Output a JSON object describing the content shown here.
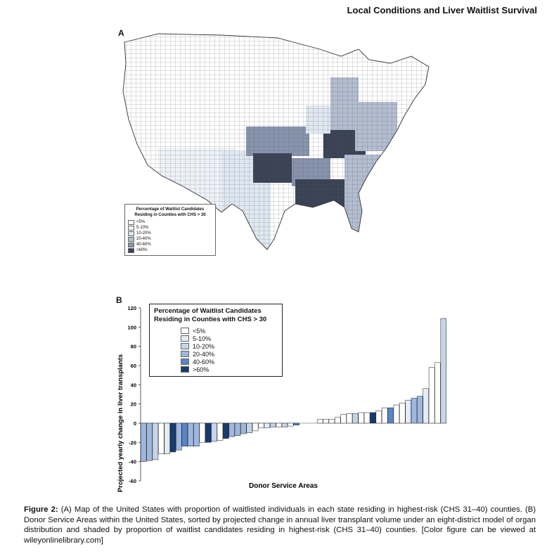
{
  "header": {
    "running_title": "Local Conditions and Liver Waitlist Survival"
  },
  "panel_a": {
    "label": "A",
    "legend": {
      "title": "Percentage of Waitlist Candidates Residing in Counties with CHS > 30",
      "items": [
        {
          "label": "<5%",
          "color": "#ffffff"
        },
        {
          "label": "5-10%",
          "color": "#eef2f8"
        },
        {
          "label": "10-20%",
          "color": "#dfe7f1"
        },
        {
          "label": "20-40%",
          "color": "#b3bdd0"
        },
        {
          "label": "40-60%",
          "color": "#8894ad"
        },
        {
          "label": ">60%",
          "color": "#3a4255"
        }
      ]
    }
  },
  "panel_b": {
    "label": "B"
  },
  "chart_data": {
    "type": "bar",
    "xlabel": "Donor Service Areas",
    "ylabel": "Projected yearly change in liver transplants",
    "ylim": [
      -60,
      120
    ],
    "yticks": [
      -60,
      -40,
      -20,
      0,
      20,
      40,
      60,
      80,
      100,
      120
    ],
    "grid": false,
    "legend_position": "top-left",
    "legend": {
      "title": "Percentage of Waitlist Candidates Residing in Counties with CHS > 30",
      "items": [
        {
          "label": "<5%",
          "color": "#ffffff"
        },
        {
          "label": "5-10%",
          "color": "#e3ebf5"
        },
        {
          "label": "10-20%",
          "color": "#c5d5ea"
        },
        {
          "label": "20-40%",
          "color": "#9db7dd"
        },
        {
          "label": "40-60%",
          "color": "#5b86c4"
        },
        {
          "label": ">60%",
          "color": "#173b6c"
        }
      ]
    },
    "bars": [
      {
        "v": -40,
        "c": 3
      },
      {
        "v": -39,
        "c": 3
      },
      {
        "v": -38,
        "c": 2
      },
      {
        "v": -32,
        "c": 0
      },
      {
        "v": -32,
        "c": 1
      },
      {
        "v": -30,
        "c": 5
      },
      {
        "v": -28,
        "c": 3
      },
      {
        "v": -24,
        "c": 4
      },
      {
        "v": -24,
        "c": 3
      },
      {
        "v": -24,
        "c": 3
      },
      {
        "v": -20,
        "c": 0
      },
      {
        "v": -20,
        "c": 5
      },
      {
        "v": -19,
        "c": 2
      },
      {
        "v": -18,
        "c": 0
      },
      {
        "v": -16,
        "c": 5
      },
      {
        "v": -14,
        "c": 3
      },
      {
        "v": -13,
        "c": 3
      },
      {
        "v": -11,
        "c": 3
      },
      {
        "v": -10,
        "c": 2
      },
      {
        "v": -8,
        "c": 0
      },
      {
        "v": -5,
        "c": 0
      },
      {
        "v": -5,
        "c": 1
      },
      {
        "v": -4,
        "c": 2
      },
      {
        "v": -4,
        "c": 0
      },
      {
        "v": -4,
        "c": 2
      },
      {
        "v": -3,
        "c": 0
      },
      {
        "v": -2,
        "c": 4
      },
      {
        "v": 0,
        "c": 0
      },
      {
        "v": 0,
        "c": 0
      },
      {
        "v": 0,
        "c": 0
      },
      {
        "v": 4,
        "c": 0
      },
      {
        "v": 4,
        "c": 0
      },
      {
        "v": 4,
        "c": 0
      },
      {
        "v": 6,
        "c": 0
      },
      {
        "v": 9,
        "c": 0
      },
      {
        "v": 10,
        "c": 0
      },
      {
        "v": 10,
        "c": 2
      },
      {
        "v": 11,
        "c": 0
      },
      {
        "v": 11,
        "c": 0
      },
      {
        "v": 11,
        "c": 5
      },
      {
        "v": 13,
        "c": 0
      },
      {
        "v": 16,
        "c": 0
      },
      {
        "v": 16,
        "c": 4
      },
      {
        "v": 19,
        "c": 0
      },
      {
        "v": 21,
        "c": 0
      },
      {
        "v": 24,
        "c": 1
      },
      {
        "v": 26,
        "c": 3
      },
      {
        "v": 28,
        "c": 3
      },
      {
        "v": 36,
        "c": 1
      },
      {
        "v": 58,
        "c": 0
      },
      {
        "v": 63,
        "c": 0
      },
      {
        "v": 109,
        "c": 2
      }
    ]
  },
  "caption": {
    "label": "Figure 2:",
    "text": " (A) Map of the United States with proportion of waitlisted individuals in each state residing in highest-risk (CHS 31–40) counties. (B) Donor Service Areas within the United States, sorted by projected change in annual liver transplant volume under an eight-district model of organ distribution and shaded by proportion of waitlist candidates residing in highest-risk (CHS 31–40) counties. [Color figure can be viewed at wileyonlinelibrary.com]"
  }
}
